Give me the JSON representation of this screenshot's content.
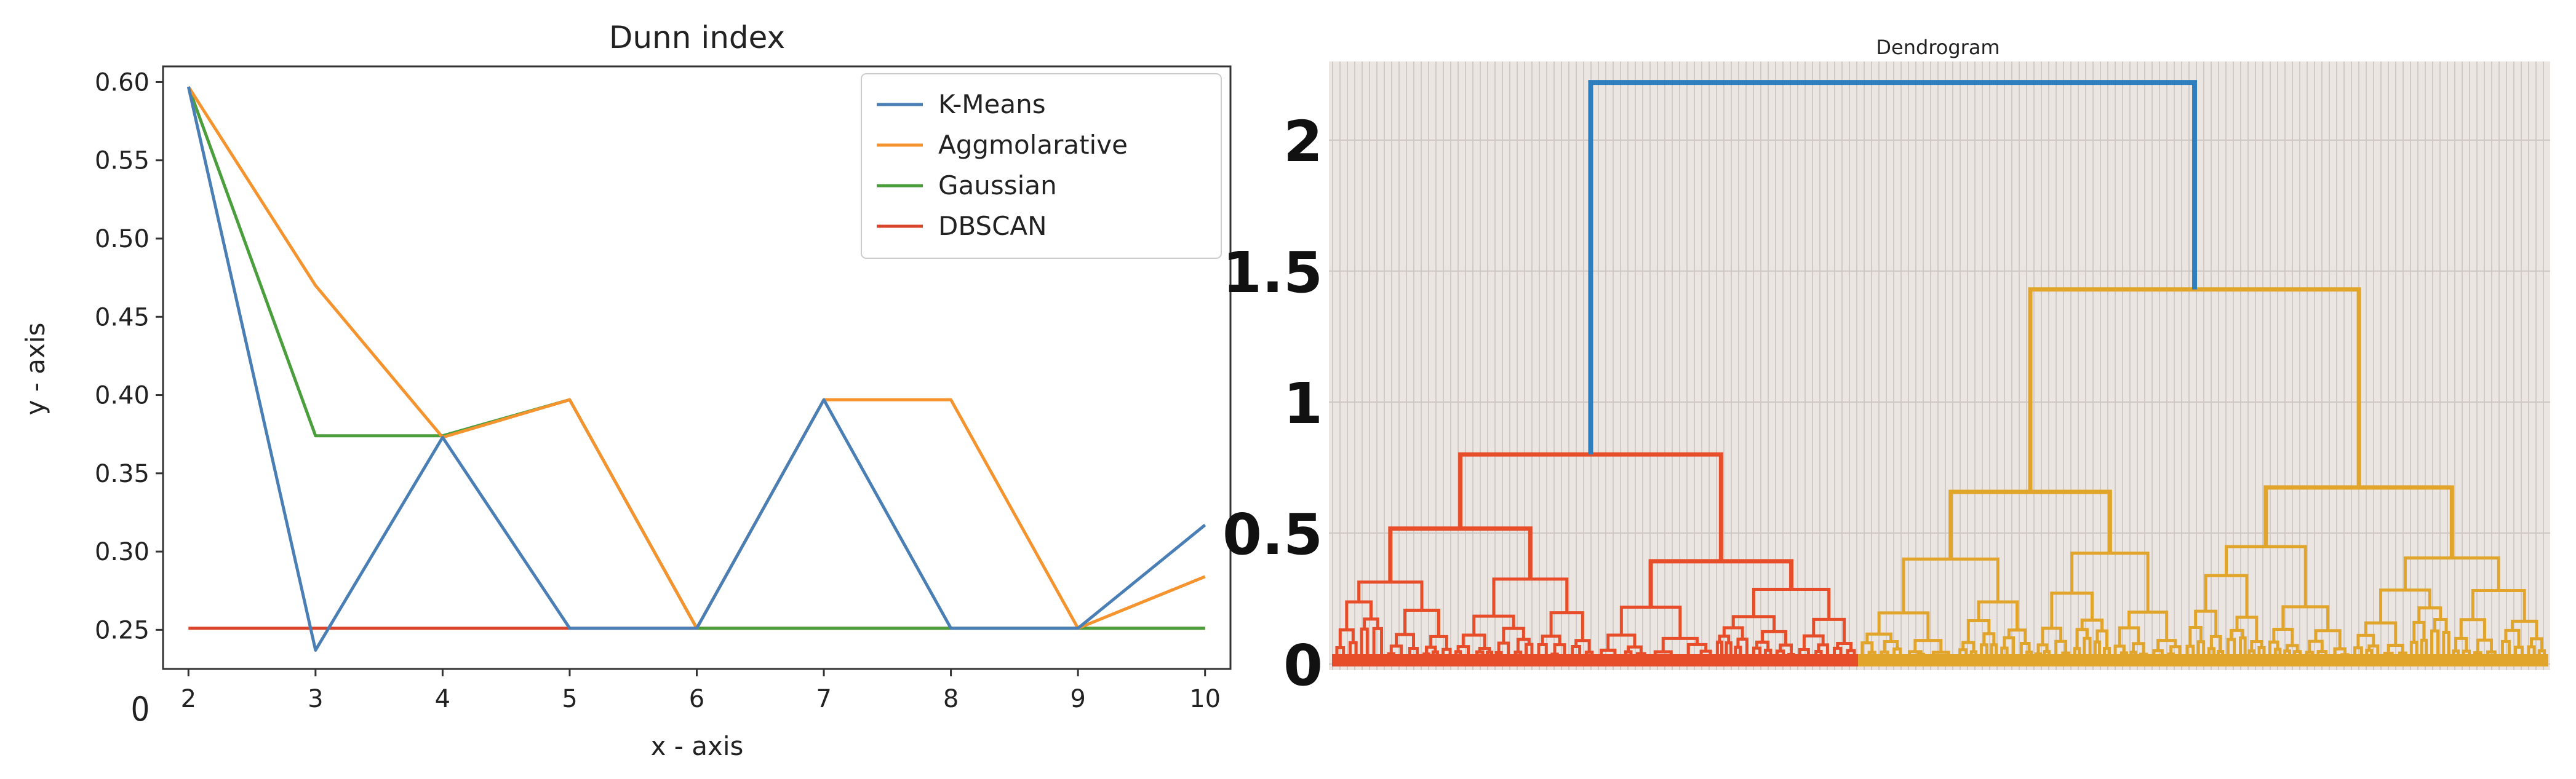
{
  "chart_data": [
    {
      "type": "line",
      "title": "Dunn index",
      "xlabel": "x - axis",
      "ylabel": "y - axis",
      "x": [
        2,
        3,
        4,
        5,
        6,
        7,
        8,
        9,
        10
      ],
      "xlim": [
        1.8,
        10.2
      ],
      "ylim": [
        0.225,
        0.61
      ],
      "x_ticks": [
        "2",
        "3",
        "4",
        "5",
        "6",
        "7",
        "8",
        "9",
        "10"
      ],
      "y_ticks": [
        "0.60",
        "0.55",
        "0.50",
        "0.45",
        "0.40",
        "0.35",
        "0.30",
        "0.25"
      ],
      "y_tick_values": [
        0.6,
        0.55,
        0.5,
        0.45,
        0.4,
        0.35,
        0.3,
        0.25
      ],
      "outside_label": "0",
      "legend_position": "top-right",
      "series": [
        {
          "name": "K-Means",
          "color": "#4a7fb5",
          "values": [
            0.597,
            0.237,
            0.373,
            0.251,
            0.251,
            0.397,
            0.251,
            0.251,
            0.317
          ]
        },
        {
          "name": "Aggmolarative",
          "color": "#f5932f",
          "values": [
            0.597,
            0.47,
            0.373,
            0.397,
            0.251,
            0.397,
            0.397,
            0.251,
            0.284
          ]
        },
        {
          "name": "Gaussian",
          "color": "#4a9e3c",
          "values": [
            0.597,
            0.374,
            0.374,
            0.397,
            0.251,
            0.251,
            0.251,
            0.251,
            0.251
          ]
        },
        {
          "name": "DBSCAN",
          "color": "#d9452b",
          "values": [
            0.251,
            0.251,
            0.251,
            0.251,
            0.251,
            0.251,
            0.251,
            0.251,
            0.251
          ]
        }
      ]
    },
    {
      "type": "dendrogram",
      "title": "Dendrogram",
      "ylim": [
        0,
        2.3
      ],
      "y_ticks": [
        "2",
        "1.5",
        "1",
        "0.5",
        "0"
      ],
      "y_tick_values": [
        2,
        1.5,
        1,
        0.5,
        0
      ],
      "colors": {
        "root": "#2f7fbf",
        "left_cluster": "#e84d2a",
        "right_cluster": "#e2a52c"
      },
      "merge_heights": {
        "root": 2.22,
        "left_cluster": 0.8,
        "right_cluster": 1.43
      }
    }
  ]
}
